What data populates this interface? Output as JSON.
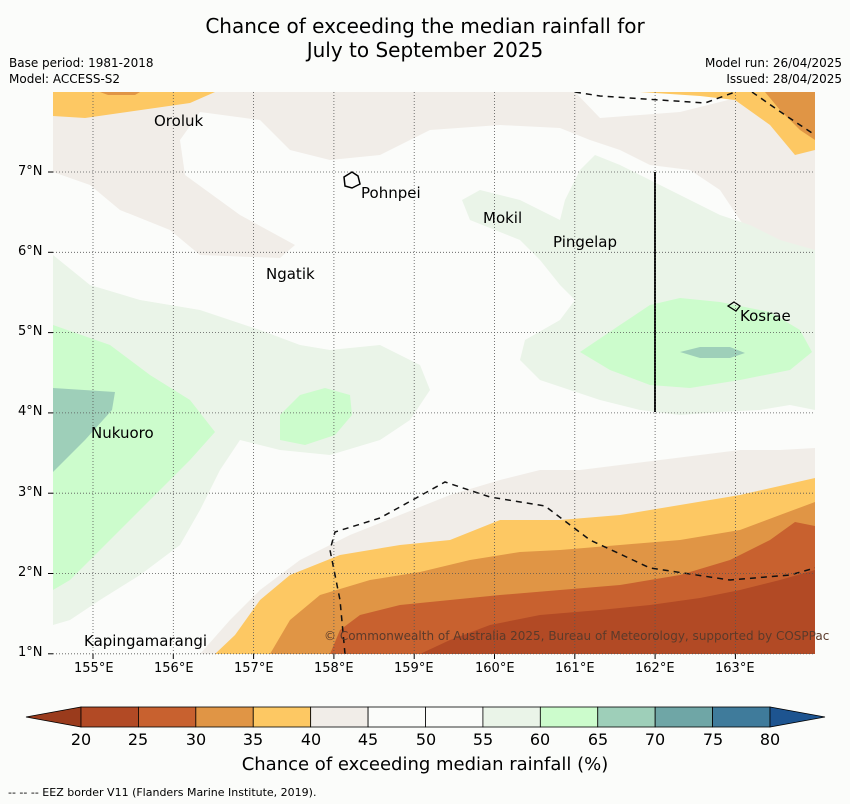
{
  "header": {
    "title_line1": "Chance of exceeding the median rainfall for",
    "title_line2": "July to September 2025",
    "base_period": "Base period: 1981-2018",
    "model": "Model: ACCESS-S2",
    "model_run": "Model run: 26/04/2025",
    "issued": "Issued: 28/04/2025"
  },
  "map": {
    "lon_ticks": [
      "155°E",
      "156°E",
      "157°E",
      "158°E",
      "159°E",
      "160°E",
      "161°E",
      "162°E",
      "163°E"
    ],
    "lat_ticks": [
      "7°N",
      "6°N",
      "5°N",
      "4°N",
      "3°N",
      "2°N",
      "1°N"
    ],
    "places": {
      "oroluk": "Oroluk",
      "pohnpei": "Pohnpei",
      "mokil": "Mokil",
      "pingelap": "Pingelap",
      "ngatik": "Ngatik",
      "kosrae": "Kosrae",
      "nukuoro": "Nukuoro",
      "kapingamarangi": "Kapingamarangi"
    },
    "copyright": "© Commonwealth of Australia 2025, Bureau of Meteorology, supported by COSPPac"
  },
  "colorbar": {
    "title": "Chance of exceeding median rainfall (%)",
    "labels": [
      "20",
      "25",
      "30",
      "35",
      "40",
      "45",
      "50",
      "55",
      "60",
      "65",
      "70",
      "75",
      "80"
    ],
    "colors": [
      "#b24a25",
      "#c8612f",
      "#e09545",
      "#fdc863",
      "#f1ede8",
      "#fbfcfa",
      "#fbfcfa",
      "#eaf4e8",
      "#ccfccc",
      "#9ecfb9",
      "#6fa6a6",
      "#3f7b9b"
    ],
    "under_color": "#9a3b1c",
    "over_color": "#1d5490"
  },
  "footnote": "--  --  -- EEZ border V11 (Flanders Marine Institute, 2019)."
}
